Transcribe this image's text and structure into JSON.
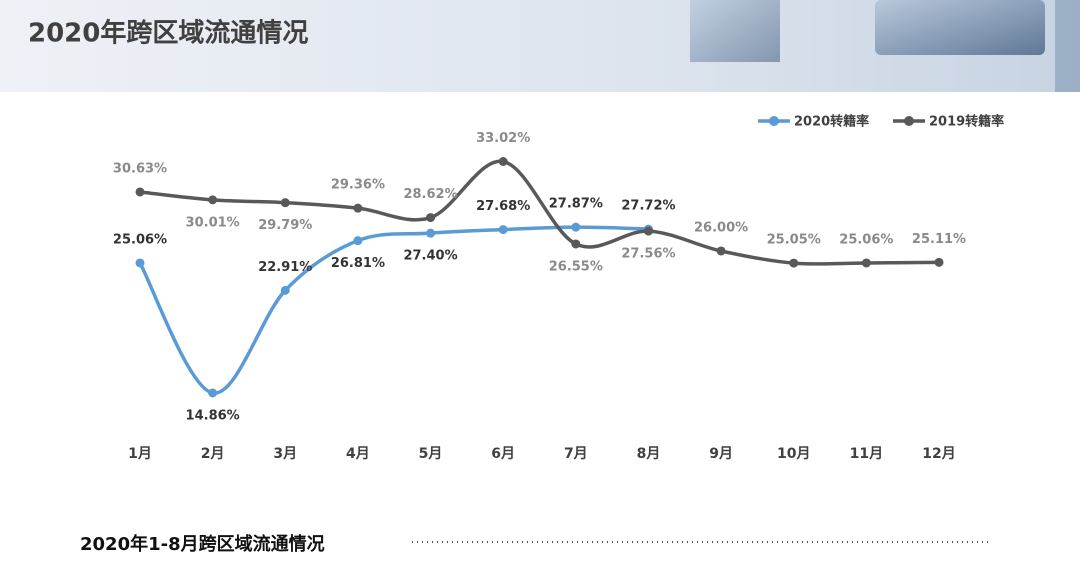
{
  "header": {
    "title": "2020年跨区域流通情况"
  },
  "chart_data": {
    "type": "line",
    "categories": [
      "1月",
      "2月",
      "3月",
      "4月",
      "5月",
      "6月",
      "7月",
      "8月",
      "9月",
      "10月",
      "11月",
      "12月"
    ],
    "series": [
      {
        "name": "2020转籍率",
        "color": "#5b9bd5",
        "values": [
          25.06,
          14.86,
          22.91,
          26.81,
          27.4,
          27.68,
          27.87,
          27.72,
          null,
          null,
          null,
          null
        ],
        "value_labels": [
          "25.06%",
          "14.86%",
          "22.91%",
          "26.81%",
          "27.40%",
          "27.68%",
          "27.87%",
          "27.72%",
          null,
          null,
          null,
          null
        ]
      },
      {
        "name": "2019转籍率",
        "color": "#595959",
        "values": [
          30.63,
          30.01,
          29.79,
          29.36,
          28.62,
          33.02,
          26.55,
          27.56,
          26.0,
          25.05,
          25.06,
          25.11
        ],
        "value_labels": [
          "30.63%",
          "30.01%",
          "29.79%",
          "29.36%",
          "28.62%",
          "33.02%",
          "26.55%",
          "27.56%",
          "26.00%",
          "25.05%",
          "25.06%",
          "25.11%"
        ]
      }
    ],
    "legend": "top-right"
  },
  "footer": {
    "subtitle": "2020年1-8月跨区域流通情况"
  }
}
